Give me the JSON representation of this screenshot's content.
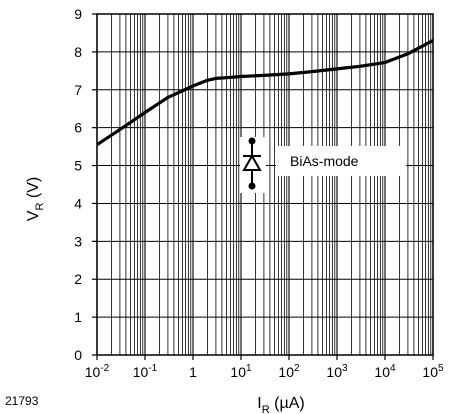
{
  "chart_data": {
    "type": "line",
    "x_scale": "log",
    "xlim": [
      0.01,
      100000
    ],
    "ylim": [
      0,
      9
    ],
    "grid": true,
    "x_tick_labels": [
      {
        "base": "10",
        "exp": "-2"
      },
      {
        "base": "10",
        "exp": "-1"
      },
      {
        "base": "1",
        "exp": ""
      },
      {
        "base": "10",
        "exp": "1"
      },
      {
        "base": "10",
        "exp": "2"
      },
      {
        "base": "10",
        "exp": "3"
      },
      {
        "base": "10",
        "exp": "4"
      },
      {
        "base": "10",
        "exp": "5"
      }
    ],
    "y_ticks": [
      0,
      1,
      2,
      3,
      4,
      5,
      6,
      7,
      8,
      9
    ],
    "ylabel": {
      "main": "V",
      "sub": "R",
      "unit": " (V)"
    },
    "xlabel": {
      "main": "I",
      "sub": "R",
      "unit": " (µA)"
    },
    "annotation": "BiAs-mode",
    "figure_id": "21793",
    "series": [
      {
        "x": [
          0.01,
          0.03,
          0.1,
          0.3,
          1,
          2,
          3,
          5,
          10,
          30,
          100,
          300,
          1000,
          3000,
          10000,
          30000,
          100000
        ],
        "y": [
          5.55,
          5.95,
          6.4,
          6.8,
          7.1,
          7.25,
          7.3,
          7.32,
          7.35,
          7.38,
          7.42,
          7.48,
          7.55,
          7.62,
          7.72,
          7.95,
          8.3
        ],
        "color": "#000000"
      }
    ]
  }
}
